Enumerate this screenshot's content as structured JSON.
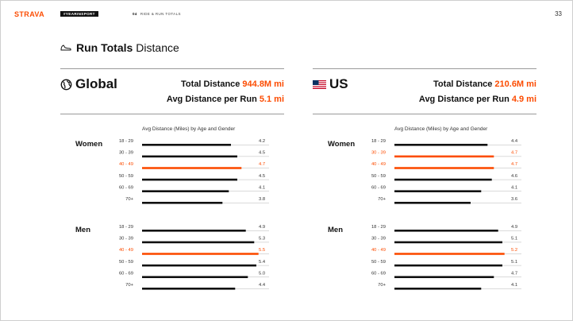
{
  "header": {
    "brand": "STRAVA",
    "tag": "#YEARINSPORT",
    "section_number": "04",
    "section_label": "RIDE & RUN TOTALS",
    "page_number": "33"
  },
  "title": {
    "bold": "Run Totals",
    "light": "Distance",
    "icon": "shoe-icon"
  },
  "colors": {
    "accent": "#fc4c02",
    "bar": "#111111",
    "rule": "#9a9a9a"
  },
  "panels": [
    {
      "region": "Global",
      "icon": "globe-icon",
      "total_label": "Total Distance",
      "total_value": "944.8M mi",
      "avg_label": "Avg Distance per Run",
      "avg_value": "5.1 mi"
    },
    {
      "region": "US",
      "icon": "us-flag-icon",
      "total_label": "Total Distance",
      "total_value": "210.6M mi",
      "avg_label": "Avg Distance per Run",
      "avg_value": "4.9 mi"
    }
  ],
  "chart_data": [
    {
      "type": "bar",
      "orientation": "horizontal",
      "title": "Avg Distance (Miles) by Age and Gender",
      "categories": [
        "18 - 29",
        "30 - 39",
        "40 - 49",
        "50 - 59",
        "60 - 69",
        "70+"
      ],
      "series": [
        {
          "name": "Women",
          "values": [
            4.2,
            4.5,
            4.7,
            4.5,
            4.1,
            3.8
          ],
          "labels": [
            "4.2",
            "4.5",
            "4.7",
            "4.5",
            "4.1",
            "3.8"
          ],
          "highlight": [
            2
          ]
        },
        {
          "name": "Men",
          "values": [
            4.9,
            5.3,
            5.5,
            5.4,
            5.0,
            4.4
          ],
          "labels": [
            "4.9",
            "5.3",
            "5.5",
            "5.4",
            "5.0",
            "4.4"
          ],
          "highlight": [
            2
          ]
        }
      ],
      "xlim": [
        0,
        6.0
      ],
      "grid": false
    },
    {
      "type": "bar",
      "orientation": "horizontal",
      "title": "Avg Distance (Miles) by Age and Gender",
      "categories": [
        "18 - 29",
        "30 - 39",
        "40 - 49",
        "50 - 59",
        "60 - 69",
        "70+"
      ],
      "series": [
        {
          "name": "Women",
          "values": [
            4.4,
            4.7,
            4.7,
            4.6,
            4.1,
            3.6
          ],
          "labels": [
            "4.4",
            "4.7",
            "4.7",
            "4.6",
            "4.1",
            "3.6"
          ],
          "highlight": [
            1,
            2
          ]
        },
        {
          "name": "Men",
          "values": [
            4.9,
            5.1,
            5.2,
            5.1,
            4.7,
            4.1
          ],
          "labels": [
            "4.9",
            "5.1",
            "5.2",
            "5.1",
            "4.7",
            "4.1"
          ],
          "highlight": [
            2
          ]
        }
      ],
      "xlim": [
        0,
        6.0
      ],
      "grid": false
    }
  ]
}
